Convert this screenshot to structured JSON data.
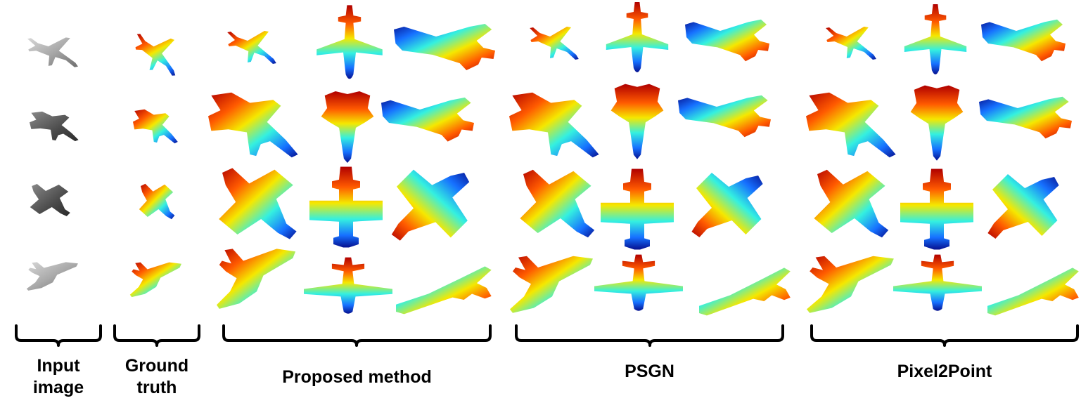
{
  "labels": {
    "input": [
      "Input",
      "image"
    ],
    "ground_truth": [
      "Ground",
      "truth"
    ],
    "proposed": "Proposed method",
    "psgn": "PSGN",
    "pixel2point": "Pixel2Point"
  }
}
